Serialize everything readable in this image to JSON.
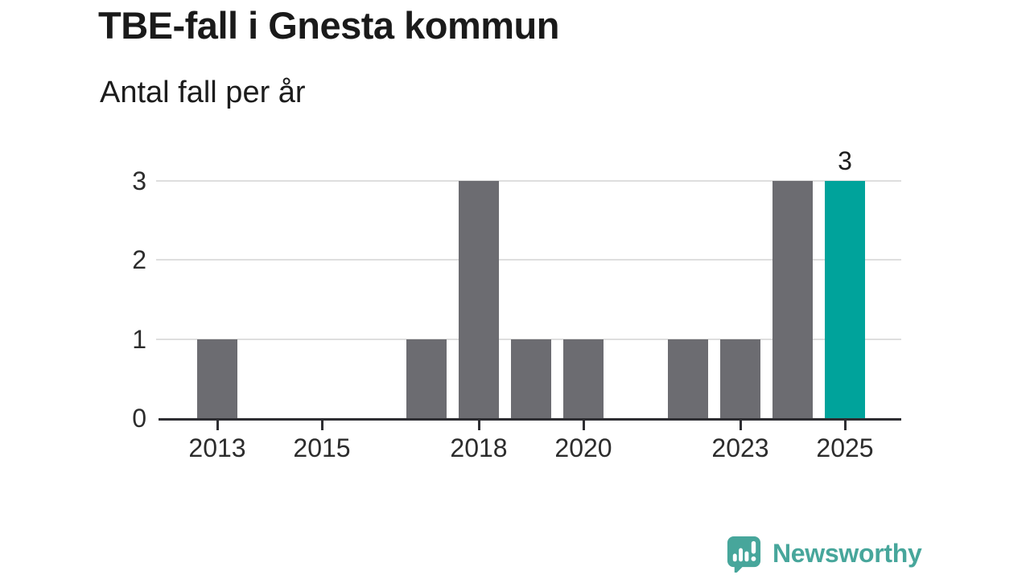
{
  "header": {
    "title": "TBE-fall i Gnesta kommun",
    "subtitle": "Antal fall per år"
  },
  "chart_data": {
    "type": "bar",
    "title": "TBE-fall i Gnesta kommun",
    "subtitle": "Antal fall per år",
    "categories": [
      "2013",
      "2014",
      "2015",
      "2016",
      "2017",
      "2018",
      "2019",
      "2020",
      "2021",
      "2022",
      "2023",
      "2024",
      "2025"
    ],
    "values": [
      1,
      0,
      0,
      0,
      1,
      3,
      1,
      1,
      0,
      1,
      1,
      3,
      3
    ],
    "xlabel": "",
    "ylabel": "Antal fall per år",
    "ylim": [
      0,
      3
    ],
    "yticks": [
      0,
      1,
      2,
      3
    ],
    "xtick_labels": [
      "2013",
      "2015",
      "2018",
      "2020",
      "2023",
      "2025"
    ],
    "grid": true,
    "legend_position": "none",
    "highlight": {
      "category": "2025",
      "value_label": "3"
    },
    "colors": {
      "bar": "#6c6c71",
      "highlight": "#00a39b",
      "grid": "#dedede",
      "axis": "#2e2e32",
      "tick_label": "#2c2c2c",
      "value_label": "#1d1d1d"
    }
  },
  "branding": {
    "logo_text": "Newsworthy",
    "logo_color": "#47a69b",
    "logo_icon": "newsworthy-speech-bubble-bar-chart-icon"
  }
}
